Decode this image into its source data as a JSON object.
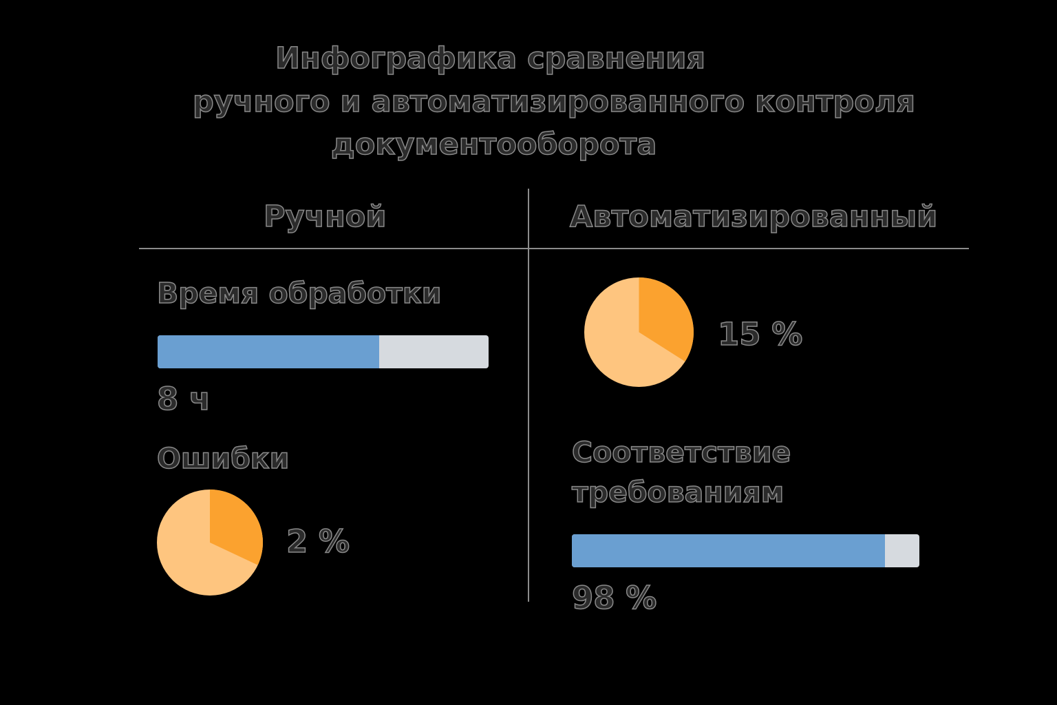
{
  "title": {
    "line1": "Инфографика сравнения",
    "line2": "ручного и автоматизированного контроля",
    "line3": "документооборота"
  },
  "columns": {
    "left": "Ручной",
    "right": "Автоматизированный"
  },
  "colors": {
    "bar_fill": "#6a9fd1",
    "bar_track": "#d6dadf",
    "pie_highlight": "#fba22f",
    "pie_rest": "#fec57f"
  },
  "chart_data": [
    {
      "type": "bar",
      "title": "Время обработки",
      "value_label": "8 ч",
      "fill_fraction": 0.67
    },
    {
      "type": "pie",
      "title": "Ошибки",
      "value_label": "2 %",
      "highlight_fraction": 0.32
    },
    {
      "type": "pie",
      "title": "",
      "value_label": "15 %",
      "highlight_fraction": 0.34
    },
    {
      "type": "bar",
      "title_line1": "Соответствие",
      "title_line2": "требованиям",
      "value_label": "98 %",
      "fill_fraction": 0.9
    }
  ]
}
